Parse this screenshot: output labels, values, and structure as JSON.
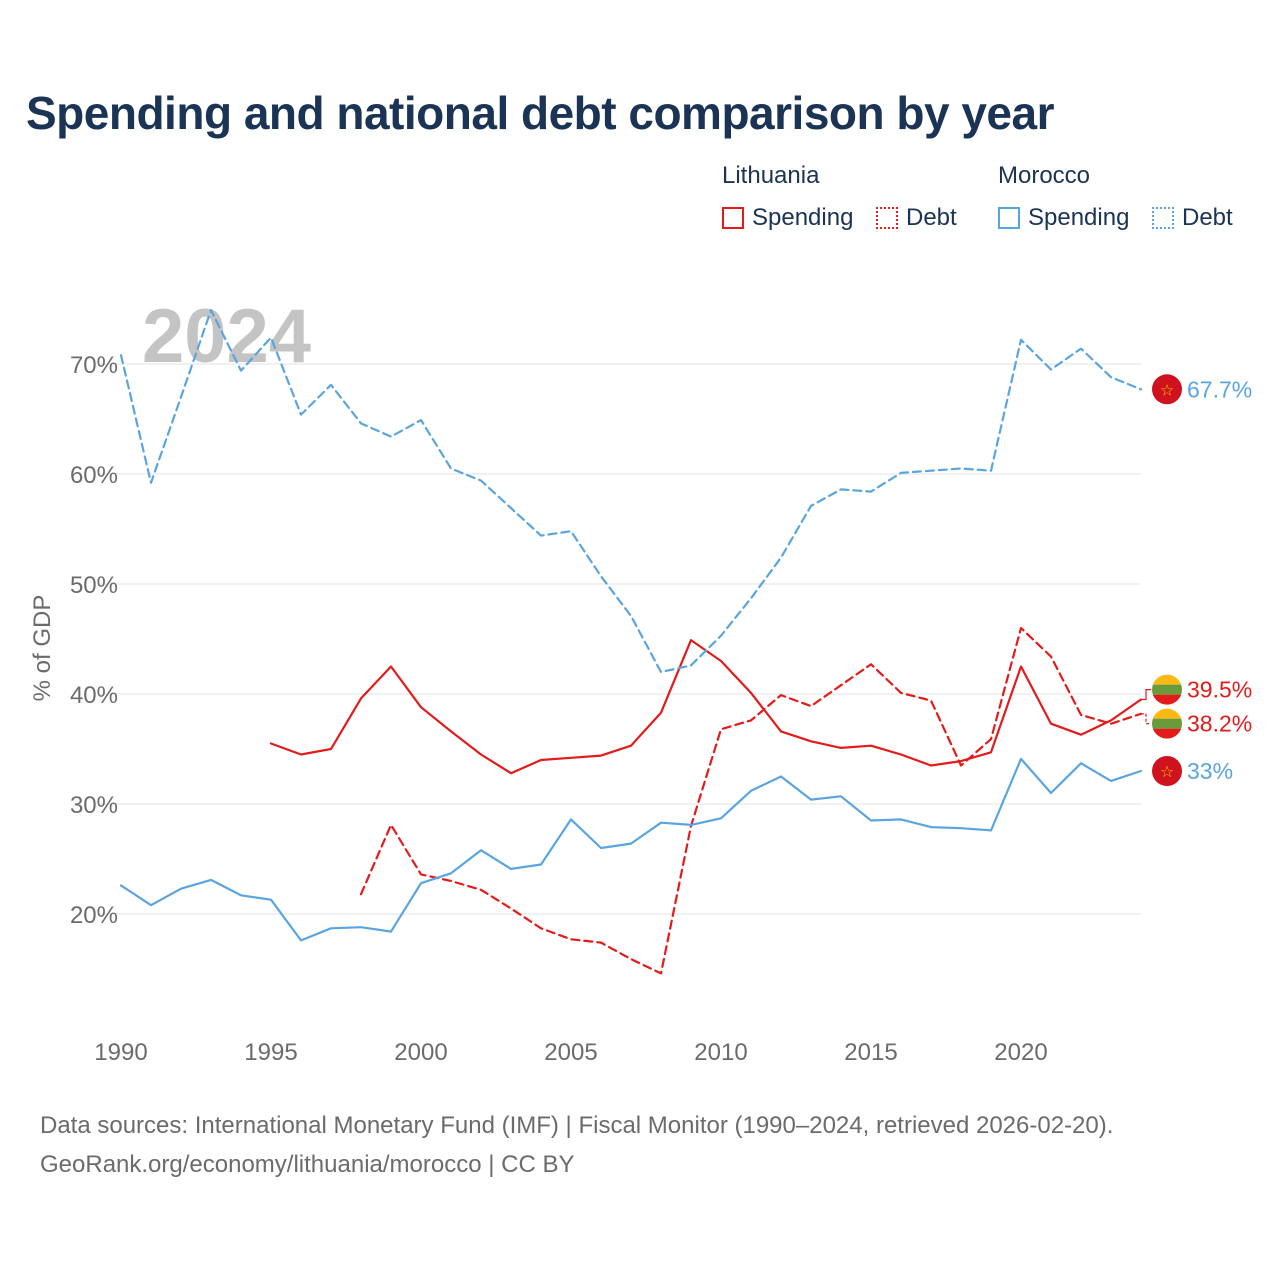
{
  "title": "Spending and national debt comparison by year",
  "legend": {
    "groups": [
      {
        "country": "Lithuania",
        "color": "#e31b1b",
        "items": [
          "Spending",
          "Debt"
        ]
      },
      {
        "country": "Morocco",
        "color": "#5aa5e0",
        "items": [
          "Spending",
          "Debt"
        ]
      }
    ]
  },
  "chart_data": {
    "type": "line",
    "year_watermark": "2024",
    "ylabel": "% of GDP",
    "xlim": [
      1990,
      2024
    ],
    "ylim": [
      10,
      75
    ],
    "y_ticks": [
      20,
      30,
      40,
      50,
      60,
      70
    ],
    "y_tick_labels": [
      "20%",
      "30%",
      "40%",
      "50%",
      "60%",
      "70%"
    ],
    "x_ticks": [
      1990,
      1995,
      2000,
      2005,
      2010,
      2015,
      2020
    ],
    "x_tick_labels": [
      "1990",
      "1995",
      "2000",
      "2005",
      "2010",
      "2015",
      "2020"
    ],
    "grid": true,
    "series": [
      {
        "name": "Lithuania Spending",
        "country": "Lithuania",
        "color": "#e31b1b",
        "dash": false,
        "label": "39.5%",
        "x": [
          1995,
          1996,
          1997,
          1998,
          1999,
          2000,
          2001,
          2002,
          2003,
          2004,
          2005,
          2006,
          2007,
          2008,
          2009,
          2010,
          2011,
          2012,
          2013,
          2014,
          2015,
          2016,
          2017,
          2018,
          2019,
          2020,
          2021,
          2022,
          2023,
          2024
        ],
        "values": [
          35.5,
          34.5,
          35.0,
          39.6,
          42.5,
          38.8,
          36.6,
          34.5,
          32.8,
          34.0,
          34.2,
          34.4,
          35.3,
          38.3,
          44.9,
          43.0,
          40.1,
          36.6,
          35.7,
          35.1,
          35.3,
          34.5,
          33.5,
          33.9,
          34.7,
          42.5,
          37.3,
          36.3,
          37.6,
          39.5
        ]
      },
      {
        "name": "Lithuania Debt",
        "country": "Lithuania",
        "color": "#e31b1b",
        "dash": true,
        "label": "38.2%",
        "x": [
          1998,
          1999,
          2000,
          2001,
          2002,
          2003,
          2004,
          2005,
          2006,
          2007,
          2008,
          2009,
          2010,
          2011,
          2012,
          2013,
          2014,
          2015,
          2016,
          2017,
          2018,
          2019,
          2020,
          2021,
          2022,
          2023,
          2024
        ],
        "values": [
          21.8,
          28.1,
          23.6,
          23.0,
          22.2,
          20.5,
          18.7,
          17.7,
          17.4,
          15.9,
          14.6,
          28.0,
          36.8,
          37.6,
          39.9,
          38.9,
          40.8,
          42.7,
          40.1,
          39.4,
          33.5,
          35.9,
          46.0,
          43.4,
          38.1,
          37.3,
          38.2
        ]
      },
      {
        "name": "Morocco Spending",
        "country": "Morocco",
        "color": "#5aa5e0",
        "dash": false,
        "label": "33%",
        "x": [
          1990,
          1991,
          1992,
          1993,
          1994,
          1995,
          1996,
          1997,
          1998,
          1999,
          2000,
          2001,
          2002,
          2003,
          2004,
          2005,
          2006,
          2007,
          2008,
          2009,
          2010,
          2011,
          2012,
          2013,
          2014,
          2015,
          2016,
          2017,
          2018,
          2019,
          2020,
          2021,
          2022,
          2023,
          2024
        ],
        "values": [
          22.6,
          20.8,
          22.3,
          23.1,
          21.7,
          21.3,
          17.6,
          18.7,
          18.8,
          18.4,
          22.8,
          23.7,
          25.8,
          24.1,
          24.5,
          28.6,
          26.0,
          26.4,
          28.3,
          28.1,
          28.7,
          31.2,
          32.5,
          30.4,
          30.7,
          28.5,
          28.6,
          27.9,
          27.8,
          27.6,
          34.1,
          31.0,
          33.7,
          32.1,
          33.0
        ]
      },
      {
        "name": "Morocco Debt",
        "country": "Morocco",
        "color": "#5aa5e0",
        "dash": true,
        "label": "67.7%",
        "x": [
          1990,
          1991,
          1992,
          1993,
          1994,
          1995,
          1996,
          1997,
          1998,
          1999,
          2000,
          2001,
          2002,
          2003,
          2004,
          2005,
          2006,
          2007,
          2008,
          2009,
          2010,
          2011,
          2012,
          2013,
          2014,
          2015,
          2016,
          2017,
          2018,
          2019,
          2020,
          2021,
          2022,
          2023,
          2024
        ],
        "values": [
          70.8,
          59.2,
          67.0,
          74.9,
          69.4,
          72.4,
          65.4,
          68.1,
          64.6,
          63.4,
          64.9,
          60.5,
          59.4,
          56.9,
          54.4,
          54.8,
          50.7,
          47.1,
          42.0,
          42.6,
          45.3,
          48.7,
          52.4,
          57.1,
          58.6,
          58.4,
          60.1,
          60.3,
          60.5,
          60.3,
          72.2,
          69.5,
          71.4,
          68.8,
          67.7
        ]
      }
    ]
  },
  "footer": {
    "line1": "Data sources: International Monetary Fund (IMF) | Fiscal Monitor (1990–2024, retrieved 2026-02-20).",
    "line2": "GeoRank.org/economy/lithuania/morocco | CC BY"
  }
}
